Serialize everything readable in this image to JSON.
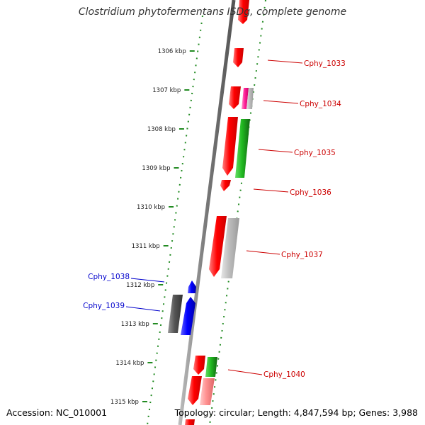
{
  "title": "Clostridium phytofermentans ISDg, complete genome",
  "footer": {
    "accession_label": "Accession: NC_010001",
    "info_label": "Topology: circular; Length: 4,847,594 bp; Genes: 3,988"
  },
  "ticks": [
    {
      "label": "1306 kbp",
      "kbp": 1306
    },
    {
      "label": "1307 kbp",
      "kbp": 1307
    },
    {
      "label": "1308 kbp",
      "kbp": 1308
    },
    {
      "label": "1309 kbp",
      "kbp": 1309
    },
    {
      "label": "1310 kbp",
      "kbp": 1310
    },
    {
      "label": "1311 kbp",
      "kbp": 1311
    },
    {
      "label": "1312 kbp",
      "kbp": 1312
    },
    {
      "label": "1313 kbp",
      "kbp": 1313
    },
    {
      "label": "1314 kbp",
      "kbp": 1314
    },
    {
      "label": "1315 kbp",
      "kbp": 1315
    }
  ],
  "gene_labels": [
    {
      "name": "Cphy_1033",
      "strand": "forward",
      "color": "#cc0000"
    },
    {
      "name": "Cphy_1034",
      "strand": "forward",
      "color": "#cc0000"
    },
    {
      "name": "Cphy_1035",
      "strand": "forward",
      "color": "#cc0000"
    },
    {
      "name": "Cphy_1036",
      "strand": "forward",
      "color": "#cc0000"
    },
    {
      "name": "Cphy_1037",
      "strand": "forward",
      "color": "#cc0000"
    },
    {
      "name": "Cphy_1038",
      "strand": "reverse",
      "color": "#0000cc"
    },
    {
      "name": "Cphy_1039",
      "strand": "reverse",
      "color": "#0000cc"
    },
    {
      "name": "Cphy_1040",
      "strand": "forward",
      "color": "#cc0000"
    }
  ],
  "colors": {
    "forward_gene": "#ff0000",
    "reverse_gene": "#0000ff",
    "backbone": "#808080",
    "track_dots": "#228b22",
    "pink_gene": "#ff3399",
    "green_gene": "#33cc33",
    "gray_gene": "#aaaaaa",
    "dark_gray_gene": "#555555",
    "salmon_gene": "#ff8888"
  }
}
